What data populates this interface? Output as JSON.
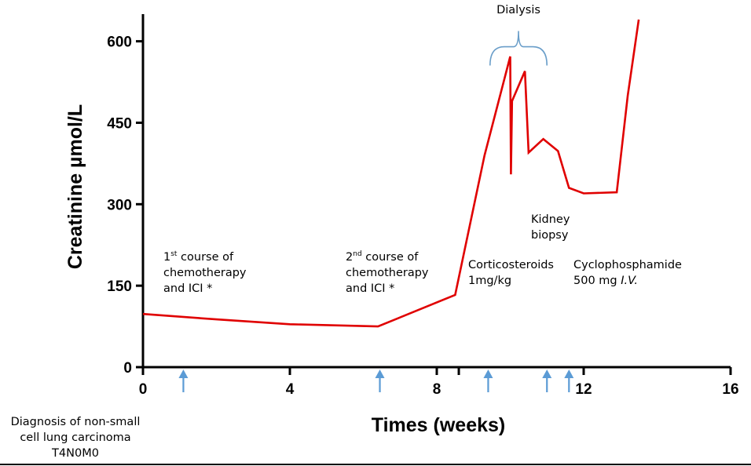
{
  "chart_data": {
    "type": "line",
    "title": "",
    "xlabel": "Times (weeks)",
    "ylabel": "Creatinine µmol/L",
    "xlim": [
      0,
      16
    ],
    "ylim": [
      0,
      650
    ],
    "xticks": [
      0,
      4,
      8,
      12,
      16
    ],
    "xtick_labels": [
      "0",
      "4",
      "8",
      "12",
      "16"
    ],
    "yticks": [
      0,
      150,
      300,
      450,
      600
    ],
    "ytick_labels": [
      "0",
      "150",
      "300",
      "450",
      "600"
    ],
    "grid": false,
    "legend": "none",
    "series": [
      {
        "color": "#e00000",
        "x": [
          0,
          2,
          4,
          6.4,
          8.5,
          9.3,
          10.0,
          10.02,
          10.05,
          10.4,
          10.5,
          10.9,
          11.3,
          11.6,
          12.0,
          12.9,
          13.2,
          13.5
        ],
        "y": [
          98,
          88,
          79,
          75,
          133,
          390,
          572,
          355,
          490,
          545,
          395,
          420,
          398,
          330,
          320,
          322,
          500,
          640
        ]
      }
    ],
    "event_arrows_x": [
      1.1,
      6.45,
      9.4,
      11.0,
      11.6
    ],
    "extra_tick_x": [
      8.6
    ],
    "dialysis_bracket": {
      "label": "Dialysis",
      "x_start": 9.45,
      "x_end": 11.0,
      "y": 590
    },
    "annotations": [
      {
        "lines": [
          "1st course of",
          "chemotherapy",
          "and ICI *"
        ],
        "superscript": "st"
      },
      {
        "lines": [
          "2nd course of",
          "chemotherapy",
          "and ICI *"
        ],
        "superscript": "nd"
      },
      {
        "lines": [
          "Corticosteroids",
          "1mg/kg"
        ]
      },
      {
        "lines": [
          "Kidney",
          "biopsy"
        ]
      },
      {
        "lines": [
          "Cyclophosphamide",
          "500 mg I.V."
        ]
      },
      {
        "lines": [
          "Diagnosis of non-small",
          "cell lung carcinoma",
          "T4N0M0"
        ]
      }
    ]
  }
}
